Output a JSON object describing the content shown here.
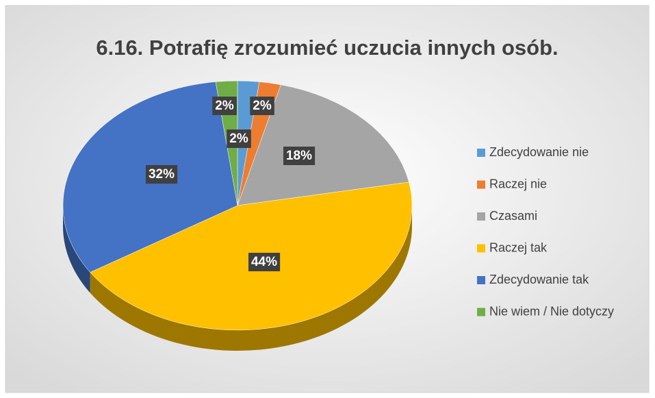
{
  "chart_data": {
    "type": "pie",
    "title": "6.16. Potrafię zrozumieć uczucia innych osób.",
    "categories": [
      "Zdecydowanie nie",
      "Raczej nie",
      "Czasami",
      "Raczej tak",
      "Zdecydowanie tak",
      "Nie wiem / Nie dotyczy"
    ],
    "values": [
      2,
      2,
      18,
      44,
      32,
      2
    ],
    "value_labels": [
      "2%",
      "2%",
      "18%",
      "44%",
      "32%",
      "2%"
    ],
    "colors": [
      "#5b9bd5",
      "#ed7d31",
      "#a5a5a5",
      "#ffc000",
      "#4472c4",
      "#70ad47"
    ],
    "legend": "right"
  }
}
